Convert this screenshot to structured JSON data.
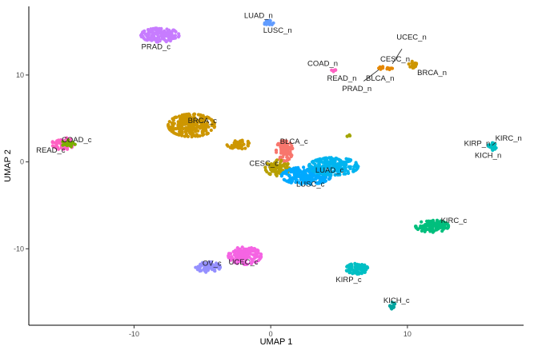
{
  "chart_data": {
    "type": "scatter",
    "title": "",
    "xlabel": "UMAP 1",
    "ylabel": "UMAP 2",
    "xlim": [
      -17.7,
      18.5
    ],
    "ylim": [
      -18.8,
      17.9
    ],
    "xticks": [
      -10,
      0,
      10
    ],
    "yticks": [
      -10,
      0,
      10
    ],
    "grid": false,
    "legend": "none",
    "clusters": [
      {
        "name": "PRAD_c",
        "color": "#c77cff",
        "cx": -8.1,
        "cy": 14.6,
        "rx": 1.4,
        "ry": 0.8,
        "n": 130
      },
      {
        "name": "COAD_c",
        "color": "#ff61c3",
        "cx": -15.2,
        "cy": 2.1,
        "rx": 0.8,
        "ry": 0.7,
        "n": 70
      },
      {
        "name": "READ_c",
        "color": "#7cae00",
        "cx": -14.8,
        "cy": 2.1,
        "rx": 0.5,
        "ry": 0.4,
        "n": 18
      },
      {
        "name": "BRCA_c",
        "color": "#cd9600",
        "cx": -5.8,
        "cy": 4.2,
        "rx": 1.7,
        "ry": 1.3,
        "n": 260
      },
      {
        "name": "BRCA_c_2",
        "color": "#cd9600",
        "cx": -2.3,
        "cy": 2.0,
        "rx": 0.9,
        "ry": 0.5,
        "n": 40
      },
      {
        "name": "BLCA_c",
        "color": "#f8766d",
        "cx": 1.0,
        "cy": 1.3,
        "rx": 0.6,
        "ry": 1.2,
        "n": 90
      },
      {
        "name": "CESC_c",
        "color": "#b79f00",
        "cx": 0.5,
        "cy": -0.7,
        "rx": 0.9,
        "ry": 0.9,
        "n": 90
      },
      {
        "name": "LUSC_c",
        "color": "#00a9ff",
        "cx": 2.6,
        "cy": -1.6,
        "rx": 1.8,
        "ry": 1.0,
        "n": 220
      },
      {
        "name": "LUAD_c",
        "color": "#00b4ef",
        "cx": 4.6,
        "cy": -0.5,
        "rx": 1.8,
        "ry": 1.0,
        "n": 220
      },
      {
        "name": "UCEC_c",
        "color": "#f564e3",
        "cx": -1.9,
        "cy": -10.8,
        "rx": 1.2,
        "ry": 1.0,
        "n": 150
      },
      {
        "name": "OV_c",
        "color": "#9590ff",
        "cx": -4.6,
        "cy": -12.1,
        "rx": 0.9,
        "ry": 0.6,
        "n": 80
      },
      {
        "name": "KIRP_c",
        "color": "#00bfc4",
        "cx": 6.3,
        "cy": -12.3,
        "rx": 0.8,
        "ry": 0.6,
        "n": 70
      },
      {
        "name": "KICH_c",
        "color": "#00a5a0",
        "cx": 8.9,
        "cy": -16.6,
        "rx": 0.2,
        "ry": 0.5,
        "n": 12
      },
      {
        "name": "KIRC_c",
        "color": "#00bf7d",
        "cx": 11.8,
        "cy": -7.4,
        "rx": 1.2,
        "ry": 0.7,
        "n": 110
      },
      {
        "name": "KIRC_n",
        "color": "#00bfc4",
        "cx": 16.2,
        "cy": 1.7,
        "rx": 0.3,
        "ry": 0.5,
        "n": 18
      },
      {
        "name": "LUAD_n",
        "color": "#619cff",
        "cx": -0.2,
        "cy": 16.0,
        "rx": 0.4,
        "ry": 0.3,
        "n": 18
      },
      {
        "name": "BRCA_n",
        "color": "#cd9600",
        "cx": 10.5,
        "cy": 11.2,
        "rx": 0.4,
        "ry": 0.4,
        "n": 20
      },
      {
        "name": "BLCA_n",
        "color": "#e58700",
        "cx": 8.4,
        "cy": 10.8,
        "rx": 0.5,
        "ry": 0.2,
        "n": 14
      },
      {
        "name": "COAD_n",
        "color": "#ff61c3",
        "cx": 4.6,
        "cy": 10.6,
        "rx": 0.2,
        "ry": 0.2,
        "n": 6
      },
      {
        "name": "extra_green",
        "color": "#a3a500",
        "cx": 5.7,
        "cy": 3.0,
        "rx": 0.12,
        "ry": 0.12,
        "n": 4
      }
    ],
    "labels": [
      {
        "text": "PRAD_c",
        "x": -8.4,
        "y": 13.2
      },
      {
        "text": "LUAD_n",
        "x": -0.9,
        "y": 16.8
      },
      {
        "text": "LUSC_n",
        "x": 0.5,
        "y": 15.1
      },
      {
        "text": "COAD_n",
        "x": 3.8,
        "y": 11.3
      },
      {
        "text": "READ_n",
        "x": 5.2,
        "y": 9.6
      },
      {
        "text": "UCEC_n",
        "x": 10.3,
        "y": 14.3
      },
      {
        "text": "CESC_n",
        "x": 9.1,
        "y": 11.8
      },
      {
        "text": "BLCA_n",
        "x": 8.0,
        "y": 9.6
      },
      {
        "text": "PRAD_n",
        "x": 6.3,
        "y": 8.4
      },
      {
        "text": "BRCA_n",
        "x": 11.8,
        "y": 10.2
      },
      {
        "text": "BRCA_c",
        "x": -5.0,
        "y": 4.7
      },
      {
        "text": "COAD_c",
        "x": -14.2,
        "y": 2.5
      },
      {
        "text": "READ_c",
        "x": -16.1,
        "y": 1.3
      },
      {
        "text": "KIRC_n",
        "x": 17.4,
        "y": 2.7
      },
      {
        "text": "KIRP_n",
        "x": 15.1,
        "y": 2.1
      },
      {
        "text": "KICH_n",
        "x": 15.9,
        "y": 0.7
      },
      {
        "text": "BLCA_c",
        "x": 1.7,
        "y": 2.3
      },
      {
        "text": "CESC_c",
        "x": -0.5,
        "y": -0.2
      },
      {
        "text": "LUAD_c",
        "x": 4.3,
        "y": -1.0
      },
      {
        "text": "LUSC_c",
        "x": 2.9,
        "y": -2.6
      },
      {
        "text": "KIRC_c",
        "x": 13.4,
        "y": -6.8
      },
      {
        "text": "OV_c",
        "x": -4.3,
        "y": -11.7
      },
      {
        "text": "UCEC_c",
        "x": -2.0,
        "y": -11.6
      },
      {
        "text": "KIRP_c",
        "x": 5.7,
        "y": -13.6
      },
      {
        "text": "KICH_c",
        "x": 9.2,
        "y": -16.0
      }
    ],
    "leader_lines": [
      {
        "from": [
          9.6,
          13.0
        ],
        "to": [
          8.9,
          11.3
        ]
      },
      {
        "from": [
          6.8,
          9.3
        ],
        "to": [
          7.9,
          10.6
        ]
      },
      {
        "from": [
          16.5,
          2.3
        ],
        "to": [
          16.2,
          1.9
        ]
      }
    ]
  }
}
